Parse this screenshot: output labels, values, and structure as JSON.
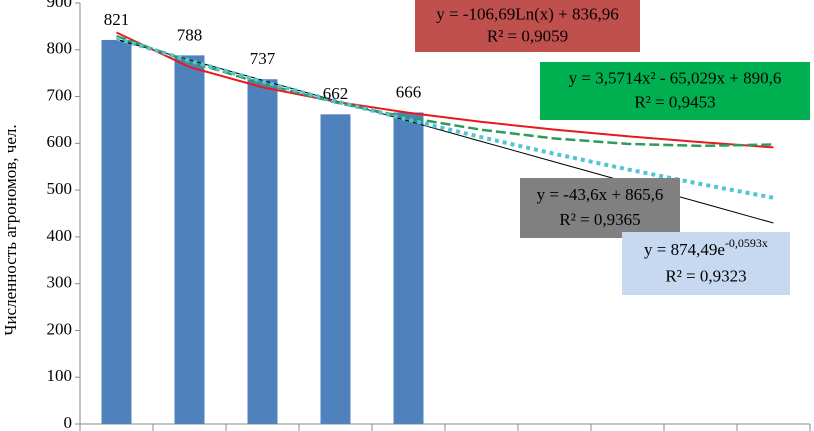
{
  "chart_data": {
    "type": "bar",
    "y_axis_label": "Численность агрономов, чел.",
    "categories": [
      null,
      null,
      null,
      null,
      null,
      null,
      null,
      null,
      null,
      null
    ],
    "values": [
      821,
      788,
      737,
      662,
      666,
      null,
      null,
      null,
      null,
      null
    ],
    "color": "#4f81bd",
    "ylim": [
      0,
      900
    ],
    "yticks": [
      0,
      100,
      200,
      300,
      400,
      500,
      600,
      700,
      800,
      900
    ],
    "grid": false,
    "trendlines": [
      {
        "color": "#000000",
        "style": "thin",
        "values": [
          822,
          778.4,
          734.8,
          691.2,
          647.6,
          604,
          560.4,
          516.8,
          473.2,
          429.6
        ]
      },
      {
        "color": "#e8191b",
        "style": "solid",
        "values": [
          837,
          763,
          719.8,
          689,
          665.3,
          645.8,
          629.4,
          615.1,
          602.5,
          591.3
        ]
      },
      {
        "color": "#2e9a5e",
        "style": "dashed",
        "values": [
          829.1,
          774.8,
          727.7,
          687.6,
          654.7,
          629,
          610.4,
          598.9,
          594.6,
          597.5
        ]
      },
      {
        "color": "#4fc6d0",
        "style": "dotted",
        "values": [
          824.2,
          776.8,
          732.1,
          690,
          650.3,
          612.9,
          577.6,
          544.4,
          513.1,
          483.6
        ]
      }
    ],
    "annotations": [
      {
        "text": "y = -106,69Ln(x) + 836,96",
        "r2": "R² = 0,9059",
        "color": "#c0504d"
      },
      {
        "text": "y = 3,5714x² - 65,029x + 890,6",
        "r2": "R² = 0,9453",
        "color": "#00b050"
      },
      {
        "text": "y = -43,6x + 865,6",
        "r2": "R² = 0,9365",
        "color": "#808080"
      },
      {
        "text": "y = 874,49e",
        "sup": "-0,0593x",
        "r2": "R² = 0,9323",
        "color": "#c6d9f1"
      }
    ]
  }
}
